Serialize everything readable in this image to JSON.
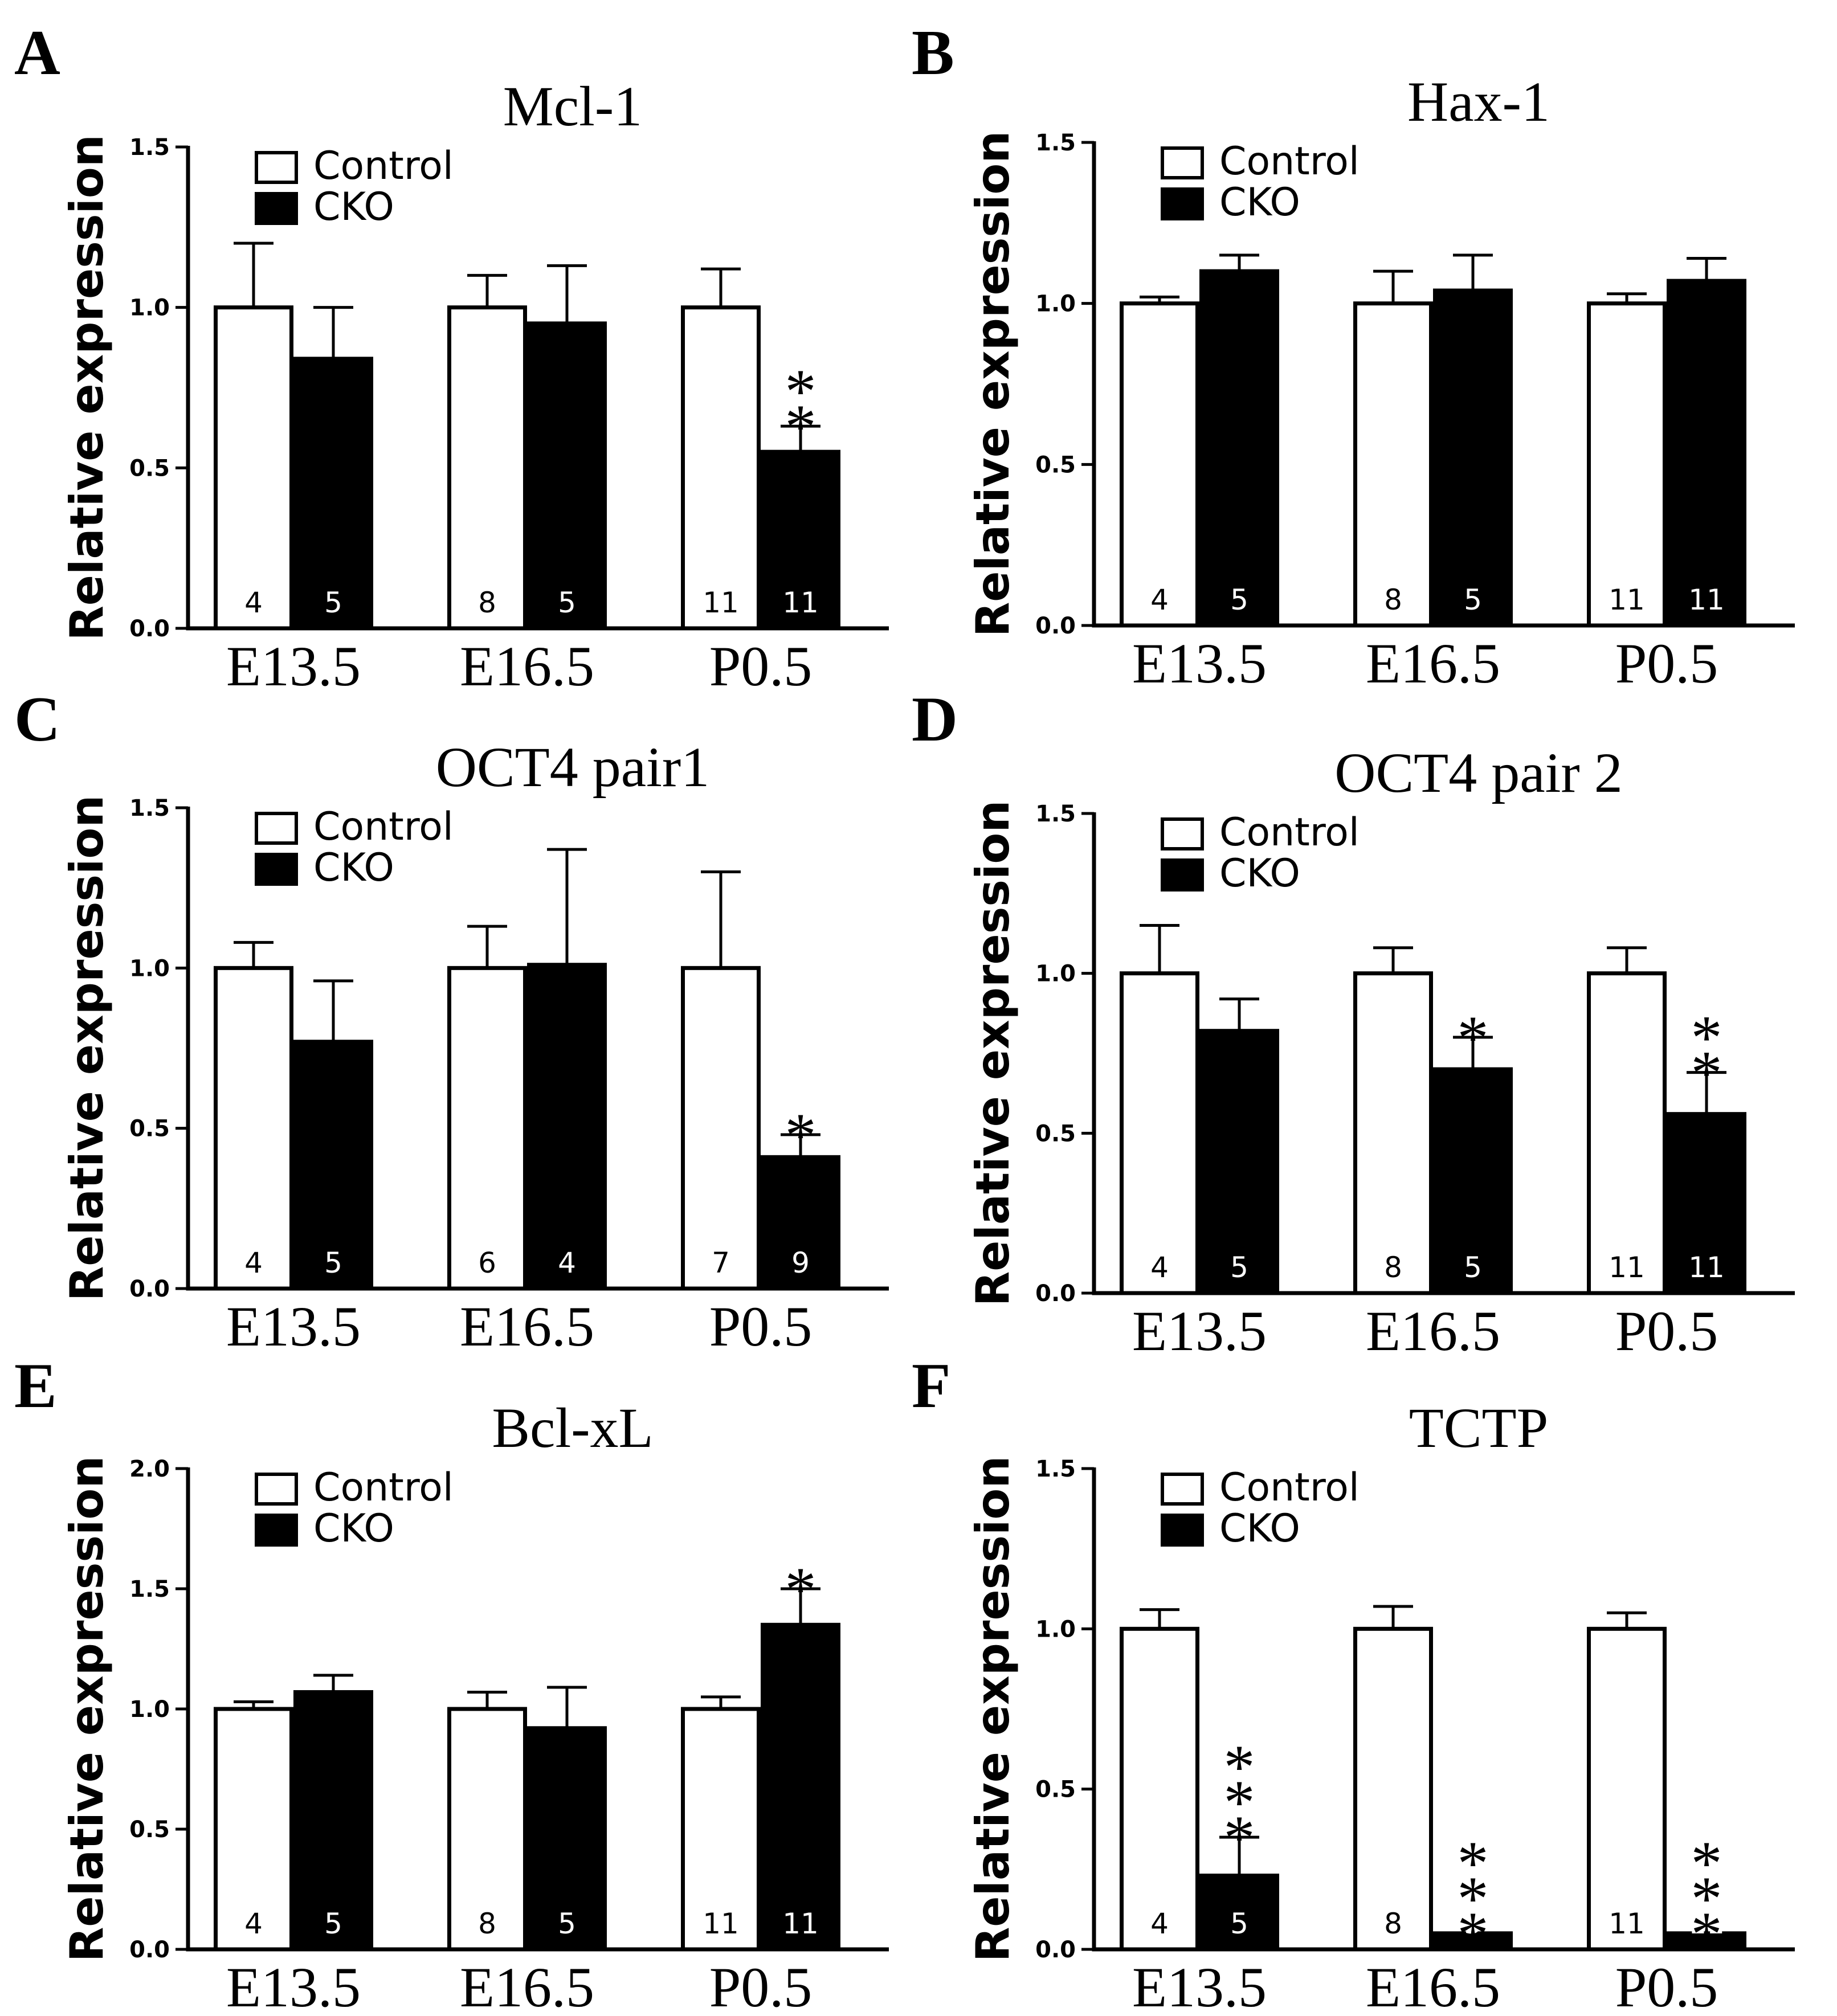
{
  "chart_data": [
    {
      "panel": "A",
      "type": "bar",
      "title": "Mcl-1",
      "ylabel": "Relative expression",
      "ylim": [
        0,
        1.5
      ],
      "yticks": [
        "0.0",
        "0.5",
        "1.0",
        "1.5"
      ],
      "categories": [
        "E13.5",
        "E16.5",
        "P0.5"
      ],
      "legend": [
        "Control",
        "CKO"
      ],
      "series": [
        {
          "name": "Control",
          "values": [
            1.0,
            1.0,
            1.0
          ],
          "errors": [
            0.2,
            0.1,
            0.12
          ],
          "n": [
            "4",
            "8",
            "11"
          ],
          "sig": [
            "",
            "",
            ""
          ]
        },
        {
          "name": "CKO",
          "values": [
            0.84,
            0.95,
            0.55
          ],
          "errors": [
            0.16,
            0.18,
            0.08
          ],
          "n": [
            "5",
            "5",
            "11"
          ],
          "sig": [
            "",
            "",
            "**"
          ]
        }
      ]
    },
    {
      "panel": "B",
      "type": "bar",
      "title": "Hax-1",
      "ylabel": "Relative expression",
      "ylim": [
        0,
        1.5
      ],
      "yticks": [
        "0.0",
        "0.5",
        "1.0",
        "1.5"
      ],
      "categories": [
        "E13.5",
        "E16.5",
        "P0.5"
      ],
      "legend": [
        "Control",
        "CKO"
      ],
      "series": [
        {
          "name": "Control",
          "values": [
            1.0,
            1.0,
            1.0
          ],
          "errors": [
            0.02,
            0.1,
            0.03
          ],
          "n": [
            "4",
            "8",
            "11"
          ],
          "sig": [
            "",
            "",
            ""
          ]
        },
        {
          "name": "CKO",
          "values": [
            1.1,
            1.04,
            1.07
          ],
          "errors": [
            0.05,
            0.11,
            0.07
          ],
          "n": [
            "5",
            "5",
            "11"
          ],
          "sig": [
            "",
            "",
            ""
          ]
        }
      ]
    },
    {
      "panel": "C",
      "type": "bar",
      "title": "OCT4 pair1",
      "ylabel": "Relative expression",
      "ylim": [
        0,
        1.5
      ],
      "yticks": [
        "0.0",
        "0.5",
        "1.0",
        "1.5"
      ],
      "categories": [
        "E13.5",
        "E16.5",
        "P0.5"
      ],
      "legend": [
        "Control",
        "CKO"
      ],
      "series": [
        {
          "name": "Control",
          "values": [
            1.0,
            1.0,
            1.0
          ],
          "errors": [
            0.08,
            0.13,
            0.3
          ],
          "n": [
            "4",
            "6",
            "7"
          ],
          "sig": [
            "",
            "",
            ""
          ]
        },
        {
          "name": "CKO",
          "values": [
            0.77,
            1.01,
            0.41
          ],
          "errors": [
            0.19,
            0.36,
            0.07
          ],
          "n": [
            "5",
            "4",
            "9"
          ],
          "sig": [
            "",
            "",
            "*"
          ]
        }
      ]
    },
    {
      "panel": "D",
      "type": "bar",
      "title": "OCT4 pair 2",
      "ylabel": "Relative expression",
      "ylim": [
        0,
        1.5
      ],
      "yticks": [
        "0.0",
        "0.5",
        "1.0",
        "1.5"
      ],
      "categories": [
        "E13.5",
        "E16.5",
        "P0.5"
      ],
      "legend": [
        "Control",
        "CKO"
      ],
      "series": [
        {
          "name": "Control",
          "values": [
            1.0,
            1.0,
            1.0
          ],
          "errors": [
            0.15,
            0.08,
            0.08
          ],
          "n": [
            "4",
            "8",
            "11"
          ],
          "sig": [
            "",
            "",
            ""
          ]
        },
        {
          "name": "CKO",
          "values": [
            0.82,
            0.7,
            0.56
          ],
          "errors": [
            0.1,
            0.1,
            0.13
          ],
          "n": [
            "5",
            "5",
            "11"
          ],
          "sig": [
            "",
            "*",
            "**"
          ]
        }
      ]
    },
    {
      "panel": "E",
      "type": "bar",
      "title": "Bcl-xL",
      "ylabel": "Relative expression",
      "ylim": [
        0,
        2.0
      ],
      "yticks": [
        "0.0",
        "0.5",
        "1.0",
        "1.5",
        "2.0"
      ],
      "categories": [
        "E13.5",
        "E16.5",
        "P0.5"
      ],
      "legend": [
        "Control",
        "CKO"
      ],
      "series": [
        {
          "name": "Control",
          "values": [
            1.0,
            1.0,
            1.0
          ],
          "errors": [
            0.03,
            0.07,
            0.05
          ],
          "n": [
            "4",
            "8",
            "11"
          ],
          "sig": [
            "",
            "",
            ""
          ]
        },
        {
          "name": "CKO",
          "values": [
            1.07,
            0.92,
            1.35
          ],
          "errors": [
            0.07,
            0.17,
            0.15
          ],
          "n": [
            "5",
            "5",
            "11"
          ],
          "sig": [
            "",
            "",
            "*"
          ]
        }
      ]
    },
    {
      "panel": "F",
      "type": "bar",
      "title": "TCTP",
      "ylabel": "Relative expression",
      "ylim": [
        0,
        1.5
      ],
      "yticks": [
        "0.0",
        "0.5",
        "1.0",
        "1.5"
      ],
      "categories": [
        "E13.5",
        "E16.5",
        "P0.5"
      ],
      "legend": [
        "Control",
        "CKO"
      ],
      "series": [
        {
          "name": "Control",
          "values": [
            1.0,
            1.0,
            1.0
          ],
          "errors": [
            0.06,
            0.07,
            0.05
          ],
          "n": [
            "4",
            "8",
            "11"
          ],
          "sig": [
            "",
            "",
            ""
          ]
        },
        {
          "name": "CKO",
          "values": [
            0.23,
            0.05,
            0.05
          ],
          "errors": [
            0.12,
            0.0,
            0.0
          ],
          "n": [
            "5",
            "5",
            "11"
          ],
          "sig": [
            "***",
            "***",
            "***"
          ]
        }
      ]
    }
  ]
}
